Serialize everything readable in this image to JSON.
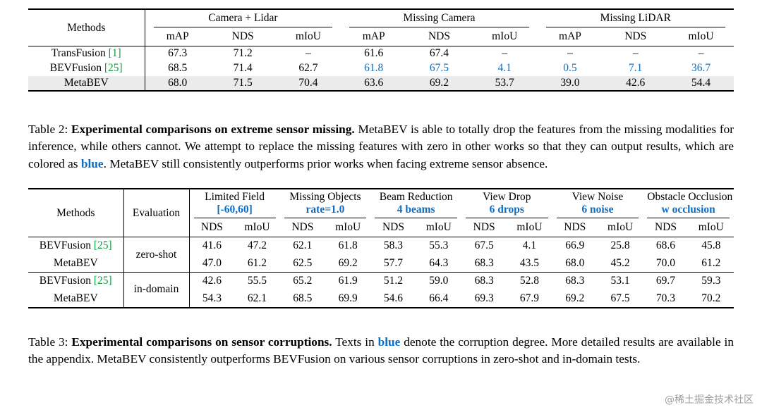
{
  "colors": {
    "blue": "#0b6ec5",
    "green": "#0f9d3f",
    "highlight": "#ebebeb"
  },
  "table2": {
    "methods_header": "Methods",
    "groups": [
      {
        "label": "Camera + Lidar"
      },
      {
        "label": "Missing Camera"
      },
      {
        "label": "Missing LiDAR"
      }
    ],
    "subcols": [
      "mAP",
      "NDS",
      "mIoU"
    ],
    "rows": [
      {
        "method": "TransFusion",
        "cite": "[1]",
        "highlight": false,
        "blue": [],
        "values": [
          "67.3",
          "71.2",
          "–",
          "61.6",
          "67.4",
          "–",
          "–",
          "–",
          "–"
        ]
      },
      {
        "method": "BEVFusion",
        "cite": "[25]",
        "highlight": false,
        "blue": [
          3,
          4,
          5,
          6,
          7,
          8
        ],
        "values": [
          "68.5",
          "71.4",
          "62.7",
          "61.8",
          "67.5",
          "4.1",
          "0.5",
          "7.1",
          "36.7"
        ]
      },
      {
        "method": "MetaBEV",
        "cite": "",
        "highlight": true,
        "blue": [],
        "values": [
          "68.0",
          "71.5",
          "70.4",
          "63.6",
          "69.2",
          "53.7",
          "39.0",
          "42.6",
          "54.4"
        ]
      }
    ]
  },
  "caption2": {
    "segments": [
      {
        "text": "Table 2: ",
        "bold": false,
        "blue": false
      },
      {
        "text": "Experimental comparisons on extreme sensor missing.",
        "bold": true,
        "blue": false
      },
      {
        "text": " MetaBEV is able to totally drop the features from the missing modalities for inference, while others cannot. We attempt to replace the missing features with zero in other works so that they can output results, which are colored as ",
        "bold": false,
        "blue": false
      },
      {
        "text": "blue",
        "bold": true,
        "blue": true
      },
      {
        "text": ". MetaBEV still consistently outperforms prior works when facing extreme sensor absence.",
        "bold": false,
        "blue": false
      }
    ]
  },
  "table3": {
    "methods_header": "Methods",
    "evaluation_header": "Evaluation",
    "groups": [
      {
        "line1": "Limited Field",
        "line2": "[-60,60]"
      },
      {
        "line1": "Missing Objects",
        "line2": "rate=1.0"
      },
      {
        "line1": "Beam Reduction",
        "line2": "4 beams"
      },
      {
        "line1": "View Drop",
        "line2": "6 drops"
      },
      {
        "line1": "View Noise",
        "line2": "6 noise"
      },
      {
        "line1": "Obstacle Occlusion",
        "line2": "w occlusion"
      }
    ],
    "subcols": [
      "NDS",
      "mIoU"
    ],
    "blocks": [
      {
        "evaluation": "zero-shot",
        "rows": [
          {
            "method": "BEVFusion",
            "cite": "[25]",
            "values": [
              "41.6",
              "47.2",
              "62.1",
              "61.8",
              "58.3",
              "55.3",
              "67.5",
              "4.1",
              "66.9",
              "25.8",
              "68.6",
              "45.8"
            ]
          },
          {
            "method": "MetaBEV",
            "cite": "",
            "values": [
              "47.0",
              "61.2",
              "62.5",
              "69.2",
              "57.7",
              "64.3",
              "68.3",
              "43.5",
              "68.0",
              "45.2",
              "70.0",
              "61.2"
            ]
          }
        ]
      },
      {
        "evaluation": "in-domain",
        "rows": [
          {
            "method": "BEVFusion",
            "cite": "[25]",
            "values": [
              "42.6",
              "55.5",
              "65.2",
              "61.9",
              "51.2",
              "59.0",
              "68.3",
              "52.8",
              "68.3",
              "53.1",
              "69.7",
              "59.3"
            ]
          },
          {
            "method": "MetaBEV",
            "cite": "",
            "values": [
              "54.3",
              "62.1",
              "68.5",
              "69.9",
              "54.6",
              "66.4",
              "69.3",
              "67.9",
              "69.2",
              "67.5",
              "70.3",
              "70.2"
            ]
          }
        ]
      }
    ]
  },
  "caption3": {
    "segments": [
      {
        "text": "Table 3: ",
        "bold": false,
        "blue": false
      },
      {
        "text": "Experimental comparisons on sensor corruptions.",
        "bold": true,
        "blue": false
      },
      {
        "text": " Texts in ",
        "bold": false,
        "blue": false
      },
      {
        "text": "blue",
        "bold": true,
        "blue": true
      },
      {
        "text": " denote the corruption degree. More detailed results are available in the appendix. MetaBEV consistently outperforms BEVFusion on various sensor corruptions in zero-shot and in-domain tests.",
        "bold": false,
        "blue": false
      }
    ]
  },
  "watermark": {
    "text": "@稀土掘金技术社区"
  }
}
